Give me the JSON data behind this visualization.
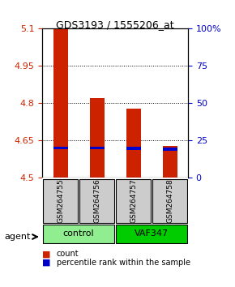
{
  "title": "GDS3193 / 1555206_at",
  "samples": [
    "GSM264755",
    "GSM264756",
    "GSM264757",
    "GSM264758"
  ],
  "count_values": [
    5.1,
    4.82,
    4.78,
    4.63
  ],
  "percentile_values": [
    4.615,
    4.615,
    4.612,
    4.61
  ],
  "bar_bottom": 4.5,
  "ylim": [
    4.5,
    5.1
  ],
  "yticks": [
    4.5,
    4.65,
    4.8,
    4.95,
    5.1
  ],
  "ytick_labels": [
    "4.5",
    "4.65",
    "4.8",
    "4.95",
    "5.1"
  ],
  "y2ticks": [
    0,
    25,
    50,
    75,
    100
  ],
  "y2tick_labels": [
    "0",
    "25",
    "50",
    "75",
    "100%"
  ],
  "groups": [
    {
      "label": "control",
      "samples": [
        0,
        1
      ],
      "color": "#90EE90"
    },
    {
      "label": "VAF347",
      "samples": [
        2,
        3
      ],
      "color": "#00CC00"
    }
  ],
  "group_label": "agent",
  "count_color": "#CC2200",
  "percentile_color": "#0000CC",
  "bar_width": 0.4,
  "legend_count": "count",
  "legend_percentile": "percentile rank within the sample",
  "bg_color": "#ffffff",
  "grid_color": "#000000",
  "sample_box_color": "#cccccc"
}
